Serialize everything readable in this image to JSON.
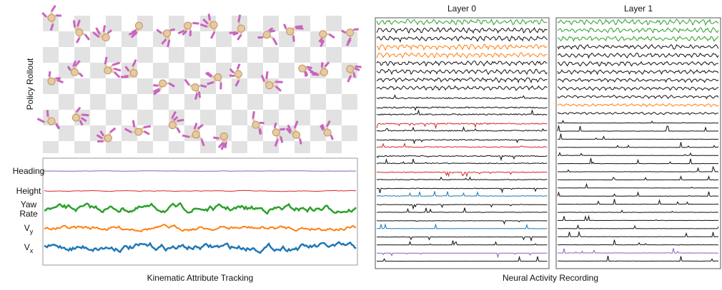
{
  "rollout": {
    "label": "Policy Rollout"
  },
  "kinematics": {
    "caption": "Kinematic Attribute Tracking",
    "rows": [
      {
        "lines": [
          "Heading"
        ]
      },
      {
        "lines": [
          "Height"
        ]
      },
      {
        "lines": [
          "Yaw",
          "Rate"
        ]
      },
      {
        "lines": [
          "V"
        ],
        "subscript": "y"
      },
      {
        "lines": [
          "V"
        ],
        "subscript": "x"
      }
    ]
  },
  "neural": {
    "caption": "Neural Activity Recording",
    "layers": [
      "Layer 0",
      "Layer 1"
    ]
  }
}
